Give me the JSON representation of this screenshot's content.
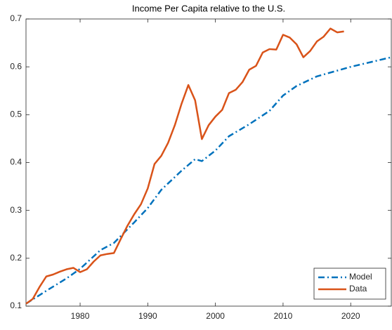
{
  "chart_data": {
    "type": "line",
    "title": "Income Per Capita relative to the U.S.",
    "xlim": [
      1972,
      2026
    ],
    "xticks": [
      1980,
      1990,
      2000,
      2010,
      2020
    ],
    "ylim": [
      0.1,
      0.7
    ],
    "yticks": [
      0.1,
      0.2,
      0.3,
      0.4,
      0.5,
      0.6,
      0.7
    ],
    "grid": false,
    "legend": "lower right",
    "series": [
      {
        "name": "Model",
        "color": "#0072BD",
        "style": "dash-dot",
        "x": [
          1972,
          1975,
          1978,
          1980,
          1983,
          1985,
          1988,
          1990,
          1992,
          1995,
          1997,
          1998,
          2000,
          2002,
          2005,
          2008,
          2010,
          2012,
          2015,
          2018,
          2020,
          2023,
          2026
        ],
        "values": [
          0.105,
          0.132,
          0.158,
          0.178,
          0.217,
          0.232,
          0.275,
          0.305,
          0.343,
          0.383,
          0.407,
          0.403,
          0.425,
          0.455,
          0.48,
          0.508,
          0.54,
          0.56,
          0.58,
          0.592,
          0.6,
          0.61,
          0.62
        ]
      },
      {
        "name": "Data",
        "color": "#D95319",
        "style": "solid",
        "x": [
          1972,
          1973,
          1974,
          1975,
          1976,
          1977,
          1978,
          1979,
          1980,
          1981,
          1982,
          1983,
          1984,
          1985,
          1986,
          1987,
          1988,
          1989,
          1990,
          1991,
          1992,
          1993,
          1994,
          1995,
          1996,
          1997,
          1998,
          1999,
          2000,
          2001,
          2002,
          2003,
          2004,
          2005,
          2006,
          2007,
          2008,
          2009,
          2010,
          2011,
          2012,
          2013,
          2014,
          2015,
          2016,
          2017,
          2018,
          2019
        ],
        "values": [
          0.105,
          0.115,
          0.14,
          0.162,
          0.166,
          0.172,
          0.177,
          0.18,
          0.171,
          0.177,
          0.193,
          0.206,
          0.209,
          0.211,
          0.24,
          0.268,
          0.292,
          0.313,
          0.346,
          0.397,
          0.414,
          0.441,
          0.478,
          0.523,
          0.562,
          0.53,
          0.449,
          0.478,
          0.496,
          0.51,
          0.545,
          0.552,
          0.568,
          0.594,
          0.602,
          0.63,
          0.637,
          0.636,
          0.667,
          0.661,
          0.647,
          0.62,
          0.633,
          0.653,
          0.663,
          0.68,
          0.672,
          0.674
        ]
      }
    ]
  }
}
